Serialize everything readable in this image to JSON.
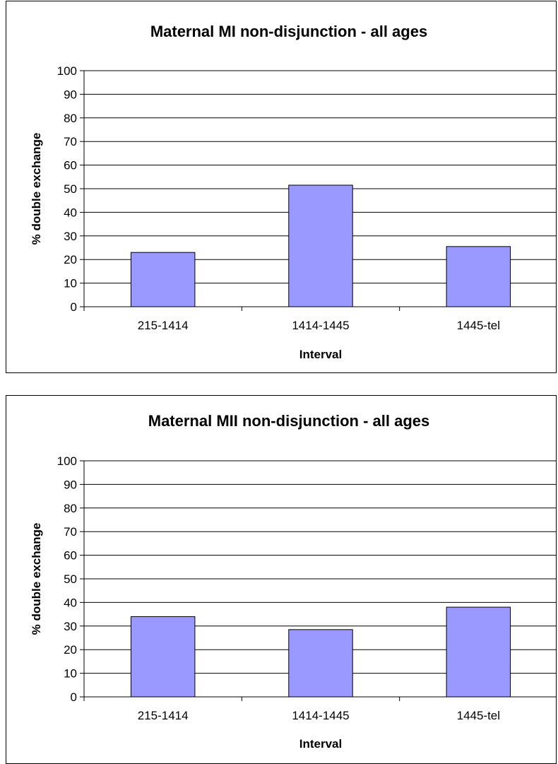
{
  "chart_data": [
    {
      "type": "bar",
      "title": "Maternal MI non-disjunction - all ages",
      "xlabel": "Interval",
      "ylabel": "% double exchange",
      "categories": [
        "215-1414",
        "1414-1445",
        "1445-tel"
      ],
      "values": [
        23,
        51.5,
        25.5
      ],
      "ylim": [
        0,
        100
      ],
      "yticks": [
        "0",
        "10",
        "20",
        "30",
        "40",
        "50",
        "60",
        "70",
        "80",
        "90",
        "100"
      ],
      "grid": true,
      "bar_color": "#9999FF"
    },
    {
      "type": "bar",
      "title": "Maternal MII non-disjunction - all ages",
      "xlabel": "Interval",
      "ylabel": "% double exchange",
      "categories": [
        "215-1414",
        "1414-1445",
        "1445-tel"
      ],
      "values": [
        34,
        28.5,
        38
      ],
      "ylim": [
        0,
        100
      ],
      "yticks": [
        "0",
        "10",
        "20",
        "30",
        "40",
        "50",
        "60",
        "70",
        "80",
        "90",
        "100"
      ],
      "grid": true,
      "bar_color": "#9999FF"
    }
  ]
}
